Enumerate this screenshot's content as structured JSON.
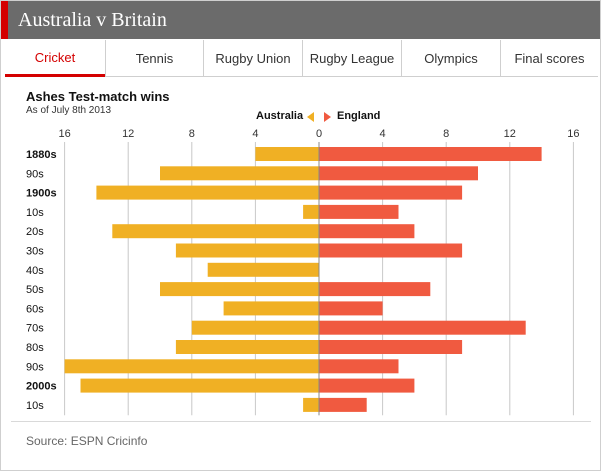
{
  "window": {
    "title": "Australia v Britain"
  },
  "tabs": [
    {
      "label": "Cricket",
      "active": true
    },
    {
      "label": "Tennis",
      "active": false
    },
    {
      "label": "Rugby Union",
      "active": false
    },
    {
      "label": "Rugby League",
      "active": false
    },
    {
      "label": "Olympics",
      "active": false
    },
    {
      "label": "Final scores",
      "active": false
    }
  ],
  "colors": {
    "accent": "#d40000",
    "australia": "#f0b024",
    "england": "#f05a40",
    "titlebar": "#6b6b6b"
  },
  "legend": {
    "left_label": "Australia",
    "right_label": "England"
  },
  "footer": {
    "source": "Source: ESPN Cricinfo"
  },
  "chart_data": {
    "type": "bar",
    "orientation": "horizontal-diverging",
    "title": "Ashes Test-match wins",
    "subtitle": "As of July 8th 2013",
    "xlim": [
      -16,
      16
    ],
    "ticks": [
      16,
      12,
      8,
      4,
      0,
      4,
      8,
      12,
      16
    ],
    "categories": [
      "1880s",
      "90s",
      "1900s",
      "10s",
      "20s",
      "30s",
      "40s",
      "50s",
      "60s",
      "70s",
      "80s",
      "90s",
      "2000s",
      "10s"
    ],
    "bold_categories": [
      "1880s",
      "1900s",
      "2000s"
    ],
    "series": [
      {
        "name": "Australia",
        "values": [
          4,
          10,
          14,
          1,
          13,
          9,
          7,
          10,
          6,
          8,
          9,
          16,
          15,
          1
        ]
      },
      {
        "name": "England",
        "values": [
          14,
          10,
          9,
          5,
          6,
          9,
          0,
          7,
          4,
          13,
          9,
          5,
          6,
          3
        ]
      }
    ]
  }
}
